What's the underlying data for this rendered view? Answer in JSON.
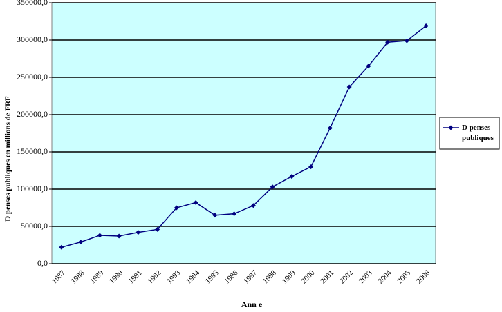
{
  "chart_data": {
    "type": "line",
    "x_label": "Ann e",
    "y_label": "D penses publiques en millions de FRF",
    "categories": [
      "1987",
      "1988",
      "1989",
      "1990",
      "1991",
      "1992",
      "1993",
      "1994",
      "1995",
      "1996",
      "1997",
      "1998",
      "1999",
      "2000",
      "2001",
      "2002",
      "2003",
      "2004",
      "2005",
      "2006"
    ],
    "series": [
      {
        "name": "D penses publiques",
        "color": "#000080",
        "values": [
          22000,
          29000,
          38000,
          37000,
          42000,
          46000,
          75000,
          82000,
          65000,
          67000,
          78000,
          103000,
          117000,
          130000,
          182000,
          237000,
          265000,
          297000,
          299000,
          319000
        ]
      }
    ],
    "ylim": [
      0,
      350000
    ],
    "yticks": [
      {
        "value": 0,
        "label": "0,0"
      },
      {
        "value": 50000,
        "label": "50000,0"
      },
      {
        "value": 100000,
        "label": "100000,0"
      },
      {
        "value": 150000,
        "label": "150000,0"
      },
      {
        "value": 200000,
        "label": "200000,0"
      },
      {
        "value": 250000,
        "label": "250000,0"
      },
      {
        "value": 300000,
        "label": "300000,0"
      },
      {
        "value": 350000,
        "label": "350000,0"
      }
    ],
    "grid": true,
    "background": "#ccffff",
    "legend_position": "right"
  }
}
